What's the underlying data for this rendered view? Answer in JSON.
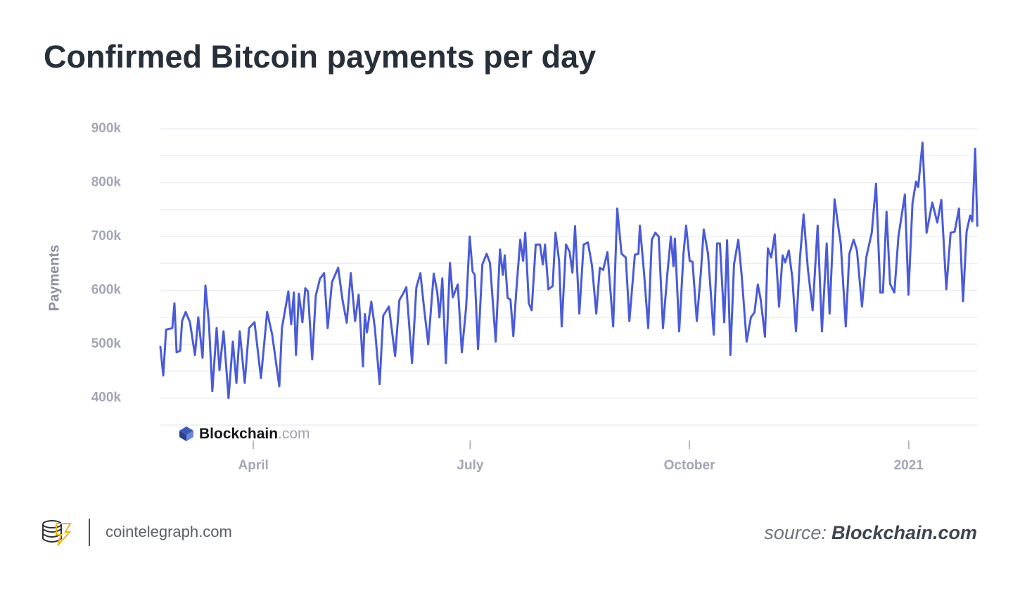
{
  "chart_data": {
    "type": "line",
    "title": "Confirmed Bitcoin payments per day",
    "y_label": "Payments",
    "watermark": [
      "Blockchain",
      ".com"
    ],
    "x": [
      0,
      1.2,
      2.4,
      5.0,
      5.9,
      6.8,
      8.3,
      9.1,
      10.6,
      12.4,
      14.5,
      15.9,
      17.7,
      18.9,
      20.4,
      21.8,
      23.6,
      24.8,
      26.5,
      28.6,
      30.4,
      31.9,
      33.3,
      35.4,
      37.2,
      39.5,
      42.2,
      44.8,
      46.9,
      49.9,
      51.0,
      53.7,
      54.9,
      56.0,
      56.9,
      58.1,
      59.6,
      60.8,
      61.9,
      63.7,
      65.2,
      67.0,
      68.7,
      70.2,
      72.0,
      74.6,
      76.4,
      78.2,
      79.9,
      81.7,
      83.2,
      85.0,
      85.8,
      86.7,
      88.5,
      90.0,
      92.0,
      93.5,
      95.9,
      98.5,
      100.3,
      102.1,
      103.2,
      105.6,
      107.4,
      109.1,
      110.6,
      112.4,
      114.7,
      116.2,
      117.1,
      118.3,
      119.8,
      121.5,
      122.7,
      124.8,
      126.5,
      128.3,
      129.8,
      131.0,
      131.9,
      133.3,
      135.1,
      136.9,
      138.3,
      140.7,
      142.5,
      143.7,
      144.5,
      145.7,
      146.9,
      148.1,
      149.3,
      151.0,
      152.2,
      153.1,
      154.6,
      155.8,
      157.5,
      159.3,
      160.5,
      161.4,
      162.8,
      164.6,
      165.8,
      167.3,
      168.4,
      170.2,
      171.7,
      172.9,
      174.0,
      175.8,
      177.6,
      179.4,
      181.1,
      182.9,
      184.4,
      185.8,
      187.6,
      190.0,
      191.7,
      193.5,
      195.3,
      196.8,
      199.1,
      200.6,
      201.2,
      202.9,
      204.7,
      206.2,
      207.7,
      209.1,
      210.9,
      212.7,
      214.2,
      215.3,
      215.9,
      217.7,
      219.5,
      220.6,
      222.1,
      223.3,
      225.1,
      226.8,
      228.0,
      229.8,
      232.2,
      233.6,
      234.8,
      236.6,
      237.8,
      239.2,
      240.7,
      242.5,
      243.9,
      246.0,
      247.8,
      249.3,
      250.7,
      251.9,
      253.7,
      254.9,
      256.3,
      257.8,
      259.6,
      261.1,
      262.2,
      263.7,
      265.2,
      266.7,
      268.4,
      269.9,
      271.7,
      273.7,
      275.8,
      277.6,
      279.6,
      280.8,
      282.9,
      284.4,
      285.5,
      287.6,
      289.1,
      290.9,
      292.3,
      294.4,
      296.2,
      298.5,
      300.3,
      302.1,
      303.2,
      304.7,
      306.2,
      308.0,
      309.7,
      312.4,
      313.9,
      315.6,
      317.1,
      318.0,
      319.8,
      321.5,
      323.9,
      326.0,
      327.7,
      329.8,
      331.6,
      333.3,
      335.1,
      336.8,
      338.3,
      339.8,
      340.7,
      341.9,
      342.8
    ],
    "values": [
      495000,
      442000,
      527000,
      530000,
      576000,
      485000,
      488000,
      543000,
      560000,
      541000,
      480000,
      550000,
      475000,
      609000,
      537000,
      413000,
      530000,
      452000,
      524000,
      400000,
      505000,
      428000,
      524000,
      428000,
      530000,
      541000,
      437000,
      560000,
      518000,
      422000,
      530000,
      598000,
      537000,
      596000,
      480000,
      594000,
      541000,
      604000,
      598000,
      472000,
      590000,
      622000,
      632000,
      530000,
      615000,
      642000,
      583000,
      540000,
      632000,
      543000,
      592000,
      459000,
      556000,
      522000,
      579000,
      530000,
      426000,
      553000,
      570000,
      478000,
      582000,
      596000,
      606000,
      465000,
      605000,
      632000,
      569000,
      500000,
      631000,
      596000,
      550000,
      622000,
      465000,
      651000,
      587000,
      611000,
      485000,
      569000,
      700000,
      635000,
      629000,
      491000,
      648000,
      668000,
      651000,
      505000,
      676000,
      629000,
      665000,
      586000,
      583000,
      515000,
      596000,
      694000,
      655000,
      707000,
      576000,
      563000,
      685000,
      685000,
      648000,
      685000,
      602000,
      608000,
      707000,
      655000,
      533000,
      685000,
      672000,
      633000,
      719000,
      557000,
      685000,
      689000,
      646000,
      557000,
      642000,
      638000,
      671000,
      533000,
      752000,
      668000,
      661000,
      543000,
      666000,
      668000,
      720000,
      635000,
      530000,
      694000,
      707000,
      700000,
      530000,
      629000,
      700000,
      645000,
      696000,
      524000,
      668000,
      720000,
      655000,
      653000,
      543000,
      634000,
      713000,
      668000,
      518000,
      687000,
      687000,
      541000,
      693000,
      480000,
      648000,
      694000,
      629000,
      505000,
      550000,
      559000,
      611000,
      583000,
      514000,
      678000,
      661000,
      704000,
      570000,
      665000,
      652000,
      674000,
      622000,
      524000,
      661000,
      741000,
      640000,
      563000,
      720000,
      524000,
      687000,
      557000,
      769000,
      720000,
      687000,
      533000,
      668000,
      694000,
      674000,
      570000,
      661000,
      707000,
      798000,
      596000,
      596000,
      746000,
      612000,
      596000,
      700000,
      778000,
      592000,
      762000,
      802000,
      792000,
      874000,
      707000,
      763000,
      726000,
      768000,
      602000,
      707000,
      709000,
      752000,
      580000,
      709000,
      739000,
      728000,
      863000,
      720000
    ],
    "color": "#4a5bd9",
    "xlim": [
      0,
      343
    ],
    "xticks": [
      {
        "value": 39,
        "label": "April"
      },
      {
        "value": 130,
        "label": "July"
      },
      {
        "value": 222,
        "label": "October"
      },
      {
        "value": 314,
        "label": "2021"
      }
    ],
    "ylim": [
      350000,
      900000
    ],
    "yticks": [
      {
        "value": 400000,
        "label": "400k"
      },
      {
        "value": 500000,
        "label": "500k"
      },
      {
        "value": 600000,
        "label": "600k"
      },
      {
        "value": 700000,
        "label": "700k"
      },
      {
        "value": 800000,
        "label": "800k"
      },
      {
        "value": 900000,
        "label": "900k"
      }
    ],
    "minor_gridlines": [
      350000,
      450000,
      550000,
      650000,
      750000,
      850000
    ],
    "grid": true
  },
  "footer": {
    "site": "cointelegraph.com",
    "source_label": "source:",
    "source_name": "Blockchain.com"
  }
}
